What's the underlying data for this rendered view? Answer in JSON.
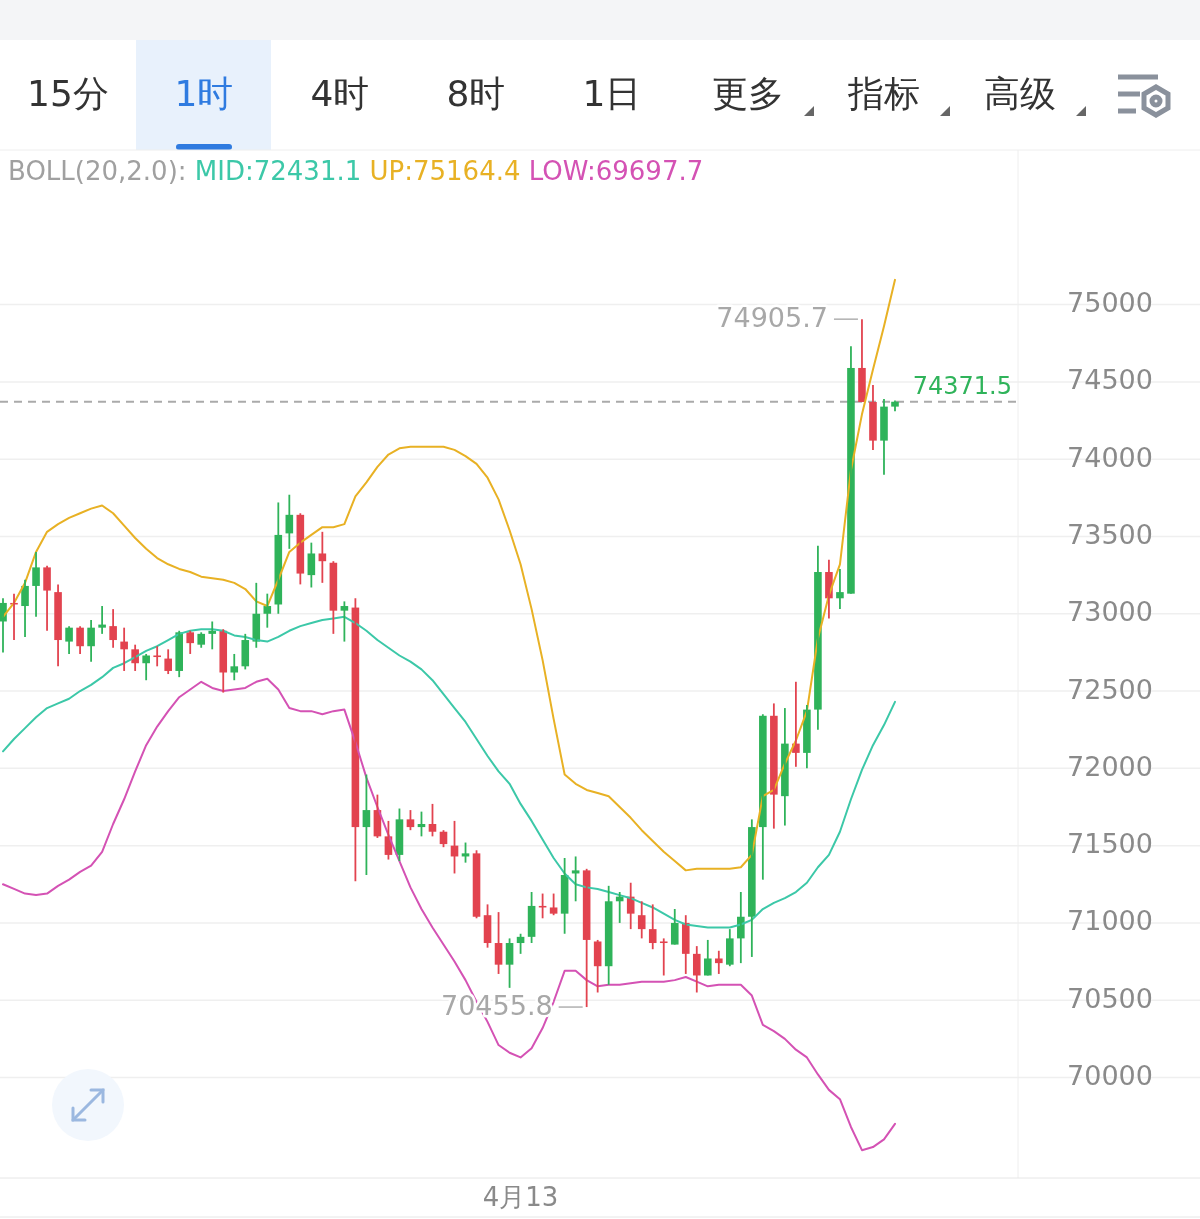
{
  "chart_data": [
    {
      "type": "other",
      "annotations": [
        "15分",
        "1时",
        "4时",
        "8时",
        "1日",
        "更多",
        "指标",
        "高级"
      ]
    },
    {
      "type": "candlestick",
      "legend_title": "BOLL(20,2.0):",
      "legend": "top",
      "grid": "y",
      "categories": [
        null,
        null,
        null,
        null,
        null,
        null,
        null,
        null,
        null,
        null,
        null,
        null,
        null,
        null,
        null,
        null,
        null,
        null,
        null,
        null,
        null,
        null,
        null,
        null,
        null,
        null,
        null,
        null,
        null,
        null,
        null,
        null,
        null,
        null,
        null,
        null,
        null,
        null,
        null,
        null,
        null,
        null,
        null,
        null,
        null,
        null,
        null,
        "4月13",
        null,
        null,
        null,
        null,
        null,
        null,
        null,
        null,
        null,
        null,
        null,
        null,
        null,
        null,
        null,
        null,
        null,
        null,
        null,
        null,
        null,
        null,
        null,
        null,
        null,
        null,
        null,
        null,
        null,
        null,
        null,
        null,
        null,
        null
      ],
      "ohlc": [
        [
          72950,
          73100,
          72750,
          73070
        ],
        [
          73070,
          73130,
          72830,
          73060
        ],
        [
          73050,
          73220,
          72850,
          73180
        ],
        [
          73180,
          73400,
          72980,
          73300
        ],
        [
          73300,
          73310,
          72890,
          73150
        ],
        [
          73140,
          73190,
          72660,
          72830
        ],
        [
          72820,
          72920,
          72740,
          72910
        ],
        [
          72910,
          72920,
          72740,
          72790
        ],
        [
          72790,
          72960,
          72690,
          72910
        ],
        [
          72910,
          73050,
          72870,
          72930
        ],
        [
          72920,
          73030,
          72780,
          72830
        ],
        [
          72820,
          72910,
          72630,
          72770
        ],
        [
          72770,
          72800,
          72630,
          72680
        ],
        [
          72680,
          72740,
          72570,
          72730
        ],
        [
          72730,
          72790,
          72660,
          72720
        ],
        [
          72710,
          72770,
          72610,
          72630
        ],
        [
          72630,
          72890,
          72590,
          72880
        ],
        [
          72880,
          72890,
          72740,
          72810
        ],
        [
          72800,
          72880,
          72780,
          72870
        ],
        [
          72870,
          72950,
          72770,
          72890
        ],
        [
          72890,
          72900,
          72490,
          72620
        ],
        [
          72620,
          72740,
          72570,
          72660
        ],
        [
          72660,
          72870,
          72640,
          72830
        ],
        [
          72820,
          73200,
          72780,
          73000
        ],
        [
          73000,
          73130,
          72910,
          73050
        ],
        [
          73060,
          73720,
          73000,
          73510
        ],
        [
          73520,
          73770,
          73420,
          73640
        ],
        [
          73640,
          73650,
          73190,
          73260
        ],
        [
          73250,
          73460,
          73170,
          73390
        ],
        [
          73390,
          73530,
          73200,
          73340
        ],
        [
          73330,
          73340,
          72870,
          73020
        ],
        [
          73020,
          73080,
          72820,
          73050
        ],
        [
          73040,
          73100,
          71270,
          71620
        ],
        [
          71620,
          71960,
          71310,
          71730
        ],
        [
          71730,
          71830,
          71550,
          71560
        ],
        [
          71560,
          71660,
          71410,
          71440
        ],
        [
          71440,
          71740,
          71400,
          71670
        ],
        [
          71670,
          71730,
          71600,
          71620
        ],
        [
          71620,
          71720,
          71560,
          71640
        ],
        [
          71640,
          71770,
          71560,
          71590
        ],
        [
          71590,
          71600,
          71490,
          71510
        ],
        [
          71500,
          71660,
          71320,
          71430
        ],
        [
          71430,
          71520,
          71390,
          71450
        ],
        [
          71450,
          71470,
          71030,
          71040
        ],
        [
          71050,
          71120,
          70840,
          70870
        ],
        [
          70870,
          71070,
          70670,
          70730
        ],
        [
          70730,
          70900,
          70580,
          70870
        ],
        [
          70870,
          70930,
          70800,
          70910
        ],
        [
          70910,
          71200,
          70870,
          71110
        ],
        [
          71110,
          71190,
          71030,
          71100
        ],
        [
          71100,
          71190,
          71050,
          71060
        ],
        [
          71060,
          71420,
          70930,
          71310
        ],
        [
          71320,
          71430,
          71140,
          71340
        ],
        [
          71340,
          71350,
          70455.8,
          70890
        ],
        [
          70880,
          70890,
          70550,
          70720
        ],
        [
          70720,
          71240,
          70600,
          71140
        ],
        [
          71140,
          71200,
          71000,
          71170
        ],
        [
          71170,
          71260,
          70960,
          71060
        ],
        [
          71050,
          71140,
          70900,
          70960
        ],
        [
          70960,
          71120,
          70830,
          70870
        ],
        [
          70880,
          70900,
          70660,
          70870
        ],
        [
          70860,
          71090,
          70860,
          71000
        ],
        [
          71000,
          71050,
          70670,
          70800
        ],
        [
          70800,
          70850,
          70550,
          70660
        ],
        [
          70660,
          70890,
          70660,
          70770
        ],
        [
          70770,
          70820,
          70670,
          70740
        ],
        [
          70730,
          70960,
          70720,
          70900
        ],
        [
          70900,
          71200,
          70740,
          71040
        ],
        [
          71040,
          71670,
          70780,
          71620
        ],
        [
          71620,
          72350,
          71280,
          72340
        ],
        [
          72340,
          72420,
          71610,
          71830
        ],
        [
          71820,
          72390,
          71630,
          72160
        ],
        [
          72160,
          72560,
          72010,
          72100
        ],
        [
          72100,
          72410,
          72000,
          72380
        ],
        [
          72380,
          73440,
          72250,
          73270
        ],
        [
          73270,
          73350,
          72970,
          73100
        ],
        [
          73100,
          73290,
          73030,
          73140
        ],
        [
          73130,
          74730,
          73130,
          74590
        ],
        [
          74590,
          74905.7,
          74370,
          74370
        ],
        [
          74370,
          74480,
          74060,
          74120
        ],
        [
          74120,
          74390,
          73900,
          74340
        ],
        [
          74340,
          74380,
          74310,
          74371.5
        ]
      ],
      "series": [
        {
          "name": "MID:72431.1",
          "type": "line",
          "color": "#3cc8a8",
          "values": [
            72110,
            72190,
            72260,
            72330,
            72390,
            72420,
            72450,
            72500,
            72540,
            72590,
            72650,
            72680,
            72720,
            72760,
            72790,
            72830,
            72870,
            72890,
            72900,
            72900,
            72890,
            72860,
            72850,
            72830,
            72820,
            72850,
            72890,
            72920,
            72940,
            72960,
            72970,
            72980,
            72940,
            72890,
            72830,
            72780,
            72730,
            72690,
            72640,
            72570,
            72480,
            72390,
            72300,
            72190,
            72080,
            71980,
            71900,
            71770,
            71660,
            71540,
            71420,
            71320,
            71250,
            71230,
            71220,
            71200,
            71180,
            71160,
            71130,
            71100,
            71060,
            71020,
            70990,
            70980,
            70970,
            70970,
            70970,
            70990,
            71020,
            71090,
            71130,
            71160,
            71200,
            71260,
            71360,
            71440,
            71590,
            71800,
            71990,
            72150,
            72280,
            72430
          ]
        },
        {
          "name": "UP:75164.4",
          "type": "line",
          "color": "#e8b124",
          "values": [
            72980,
            73070,
            73200,
            73400,
            73530,
            73580,
            73620,
            73650,
            73680,
            73700,
            73650,
            73570,
            73490,
            73420,
            73360,
            73320,
            73290,
            73270,
            73240,
            73230,
            73220,
            73200,
            73160,
            73080,
            73050,
            73220,
            73400,
            73460,
            73510,
            73560,
            73560,
            73580,
            73760,
            73850,
            73950,
            74030,
            74070,
            74080,
            74080,
            74080,
            74080,
            74060,
            74020,
            73970,
            73880,
            73740,
            73540,
            73320,
            73030,
            72700,
            72320,
            71960,
            71900,
            71860,
            71840,
            71820,
            71750,
            71680,
            71600,
            71530,
            71460,
            71400,
            71340,
            71350,
            71350,
            71350,
            71350,
            71360,
            71440,
            71820,
            71860,
            72030,
            72180,
            72370,
            72840,
            73120,
            73320,
            73930,
            74290,
            74580,
            74860,
            75160
          ]
        },
        {
          "name": "LOW:69697.7",
          "type": "line",
          "color": "#d452b4",
          "values": [
            71250,
            71220,
            71190,
            71180,
            71190,
            71240,
            71280,
            71330,
            71370,
            71460,
            71640,
            71800,
            71980,
            72150,
            72270,
            72370,
            72460,
            72510,
            72560,
            72520,
            72500,
            72510,
            72520,
            72560,
            72580,
            72510,
            72390,
            72370,
            72370,
            72350,
            72370,
            72380,
            72170,
            71940,
            71750,
            71570,
            71400,
            71230,
            71090,
            70970,
            70860,
            70750,
            70630,
            70490,
            70360,
            70210,
            70160,
            70130,
            70190,
            70320,
            70490,
            70690,
            70690,
            70630,
            70590,
            70600,
            70600,
            70610,
            70620,
            70620,
            70620,
            70630,
            70650,
            70620,
            70590,
            70600,
            70600,
            70600,
            70530,
            70340,
            70300,
            70250,
            70180,
            70130,
            70020,
            69920,
            69860,
            69680,
            69530,
            69550,
            69600,
            69700
          ]
        }
      ],
      "ylim": [
        69350,
        76000
      ],
      "yticks": [
        70000,
        70500,
        71000,
        71500,
        72000,
        72500,
        73000,
        73500,
        74000,
        74500,
        75000
      ],
      "ref_lines": [
        {
          "axis": "y",
          "value": 74371.5,
          "label": "74371.5",
          "color": "#aaaaaa",
          "line_style": "dashed"
        }
      ],
      "annotations": [
        "74905.7",
        "70455.8"
      ]
    }
  ]
}
